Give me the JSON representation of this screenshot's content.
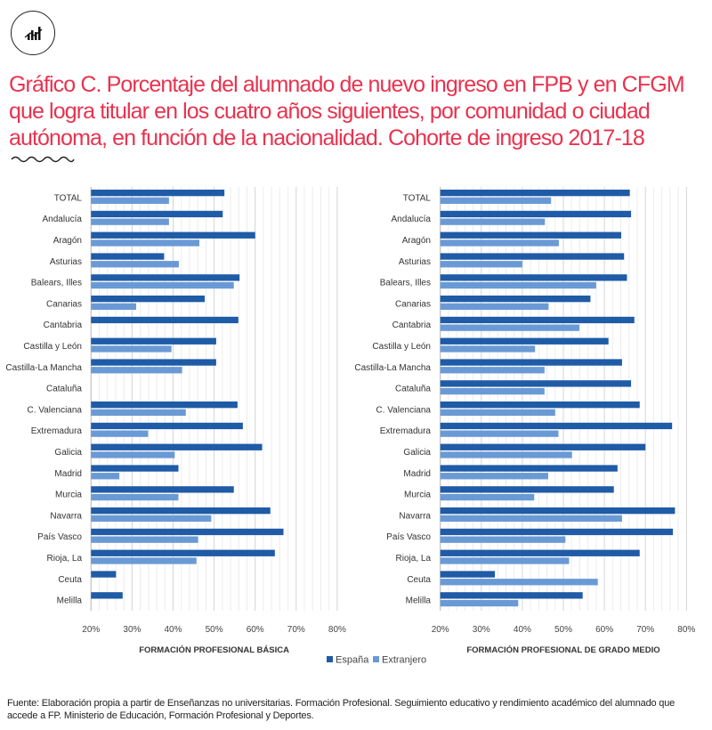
{
  "title": "Gráfico C. Porcentaje del alumnado de nuevo ingreso en FPB y en CFGM que logra titular en los cuatro años siguientes, por comunidad o ciudad autónoma, en función de la nacionalidad. Cohorte de ingreso 2017-18",
  "footnote": "Fuente:  Elaboración propia a partir de Enseñanzas no universitarias. Formación Profesional. Seguimiento educativo y rendimiento académico del alumnado que accede a FP. Ministerio de Educación, Formación Profesional y Deportes.",
  "logo_icon": "chart-bars-icon",
  "colors": {
    "title": "#e8334f",
    "espana": "#1f5ba6",
    "extranjero": "#6a9ad5"
  },
  "chart_data": [
    {
      "type": "bar",
      "orientation": "horizontal",
      "xlabel": "FORMACIÓN PROFESIONAL BÁSICA",
      "xlim": [
        20,
        80
      ],
      "xticks": [
        "20%",
        "30%",
        "40%",
        "50%",
        "60%",
        "70%",
        "80%"
      ],
      "grid": true,
      "legend": "bottom",
      "categories": [
        "TOTAL",
        "Andalucía",
        "Aragón",
        "Asturias",
        "Balears, Illes",
        "Canarias",
        "Cantabria",
        "Castilla y León",
        "Castilla-La Mancha",
        "Cataluña",
        "C. Valenciana",
        "Extremadura",
        "Galicia",
        "Madrid",
        "Murcia",
        "Navarra",
        "País Vasco",
        "Rioja, La",
        "Ceuta",
        "Melilla"
      ],
      "series": [
        {
          "name": "España",
          "values": [
            52.5,
            52.1,
            60.0,
            37.8,
            56.2,
            47.7,
            55.9,
            50.5,
            50.5,
            null,
            55.7,
            57.0,
            61.7,
            41.3,
            54.8,
            63.7,
            66.9,
            64.8,
            26.1,
            27.7
          ]
        },
        {
          "name": "Extranjero",
          "values": [
            39.0,
            39.0,
            46.4,
            41.4,
            54.8,
            31.0,
            null,
            39.6,
            42.2,
            null,
            43.1,
            33.9,
            40.4,
            26.9,
            41.3,
            49.3,
            46.1,
            45.7,
            null,
            null
          ]
        }
      ]
    },
    {
      "type": "bar",
      "orientation": "horizontal",
      "xlabel": "FORMACIÓN PROFESIONAL DE GRADO MEDIO",
      "xlim": [
        20,
        80
      ],
      "xticks": [
        "20%",
        "30%",
        "40%",
        "50%",
        "60%",
        "70%",
        "80%"
      ],
      "grid": true,
      "legend": "bottom",
      "categories": [
        "TOTAL",
        "Andalucía",
        "Aragón",
        "Asturias",
        "Balears, Illes",
        "Canarias",
        "Cantabria",
        "Castilla y León",
        "Castilla-La Mancha",
        "Cataluña",
        "C. Valenciana",
        "Extremadura",
        "Galicia",
        "Madrid",
        "Murcia",
        "Navarra",
        "País Vasco",
        "Rioja, La",
        "Ceuta",
        "Melilla"
      ],
      "series": [
        {
          "name": "España",
          "values": [
            66.2,
            66.5,
            64.1,
            64.8,
            65.5,
            56.6,
            67.3,
            61.0,
            64.3,
            66.5,
            68.6,
            76.5,
            70.0,
            63.2,
            62.3,
            77.2,
            76.7,
            68.6,
            33.3,
            54.7
          ]
        },
        {
          "name": "Extranjero",
          "values": [
            47.0,
            45.5,
            48.9,
            40.0,
            58.0,
            46.4,
            53.9,
            43.1,
            45.4,
            45.4,
            48.0,
            48.8,
            52.1,
            46.3,
            42.9,
            64.3,
            50.5,
            51.4,
            58.4,
            39.0
          ]
        }
      ]
    }
  ],
  "legend": [
    "España",
    "Extranjero"
  ]
}
